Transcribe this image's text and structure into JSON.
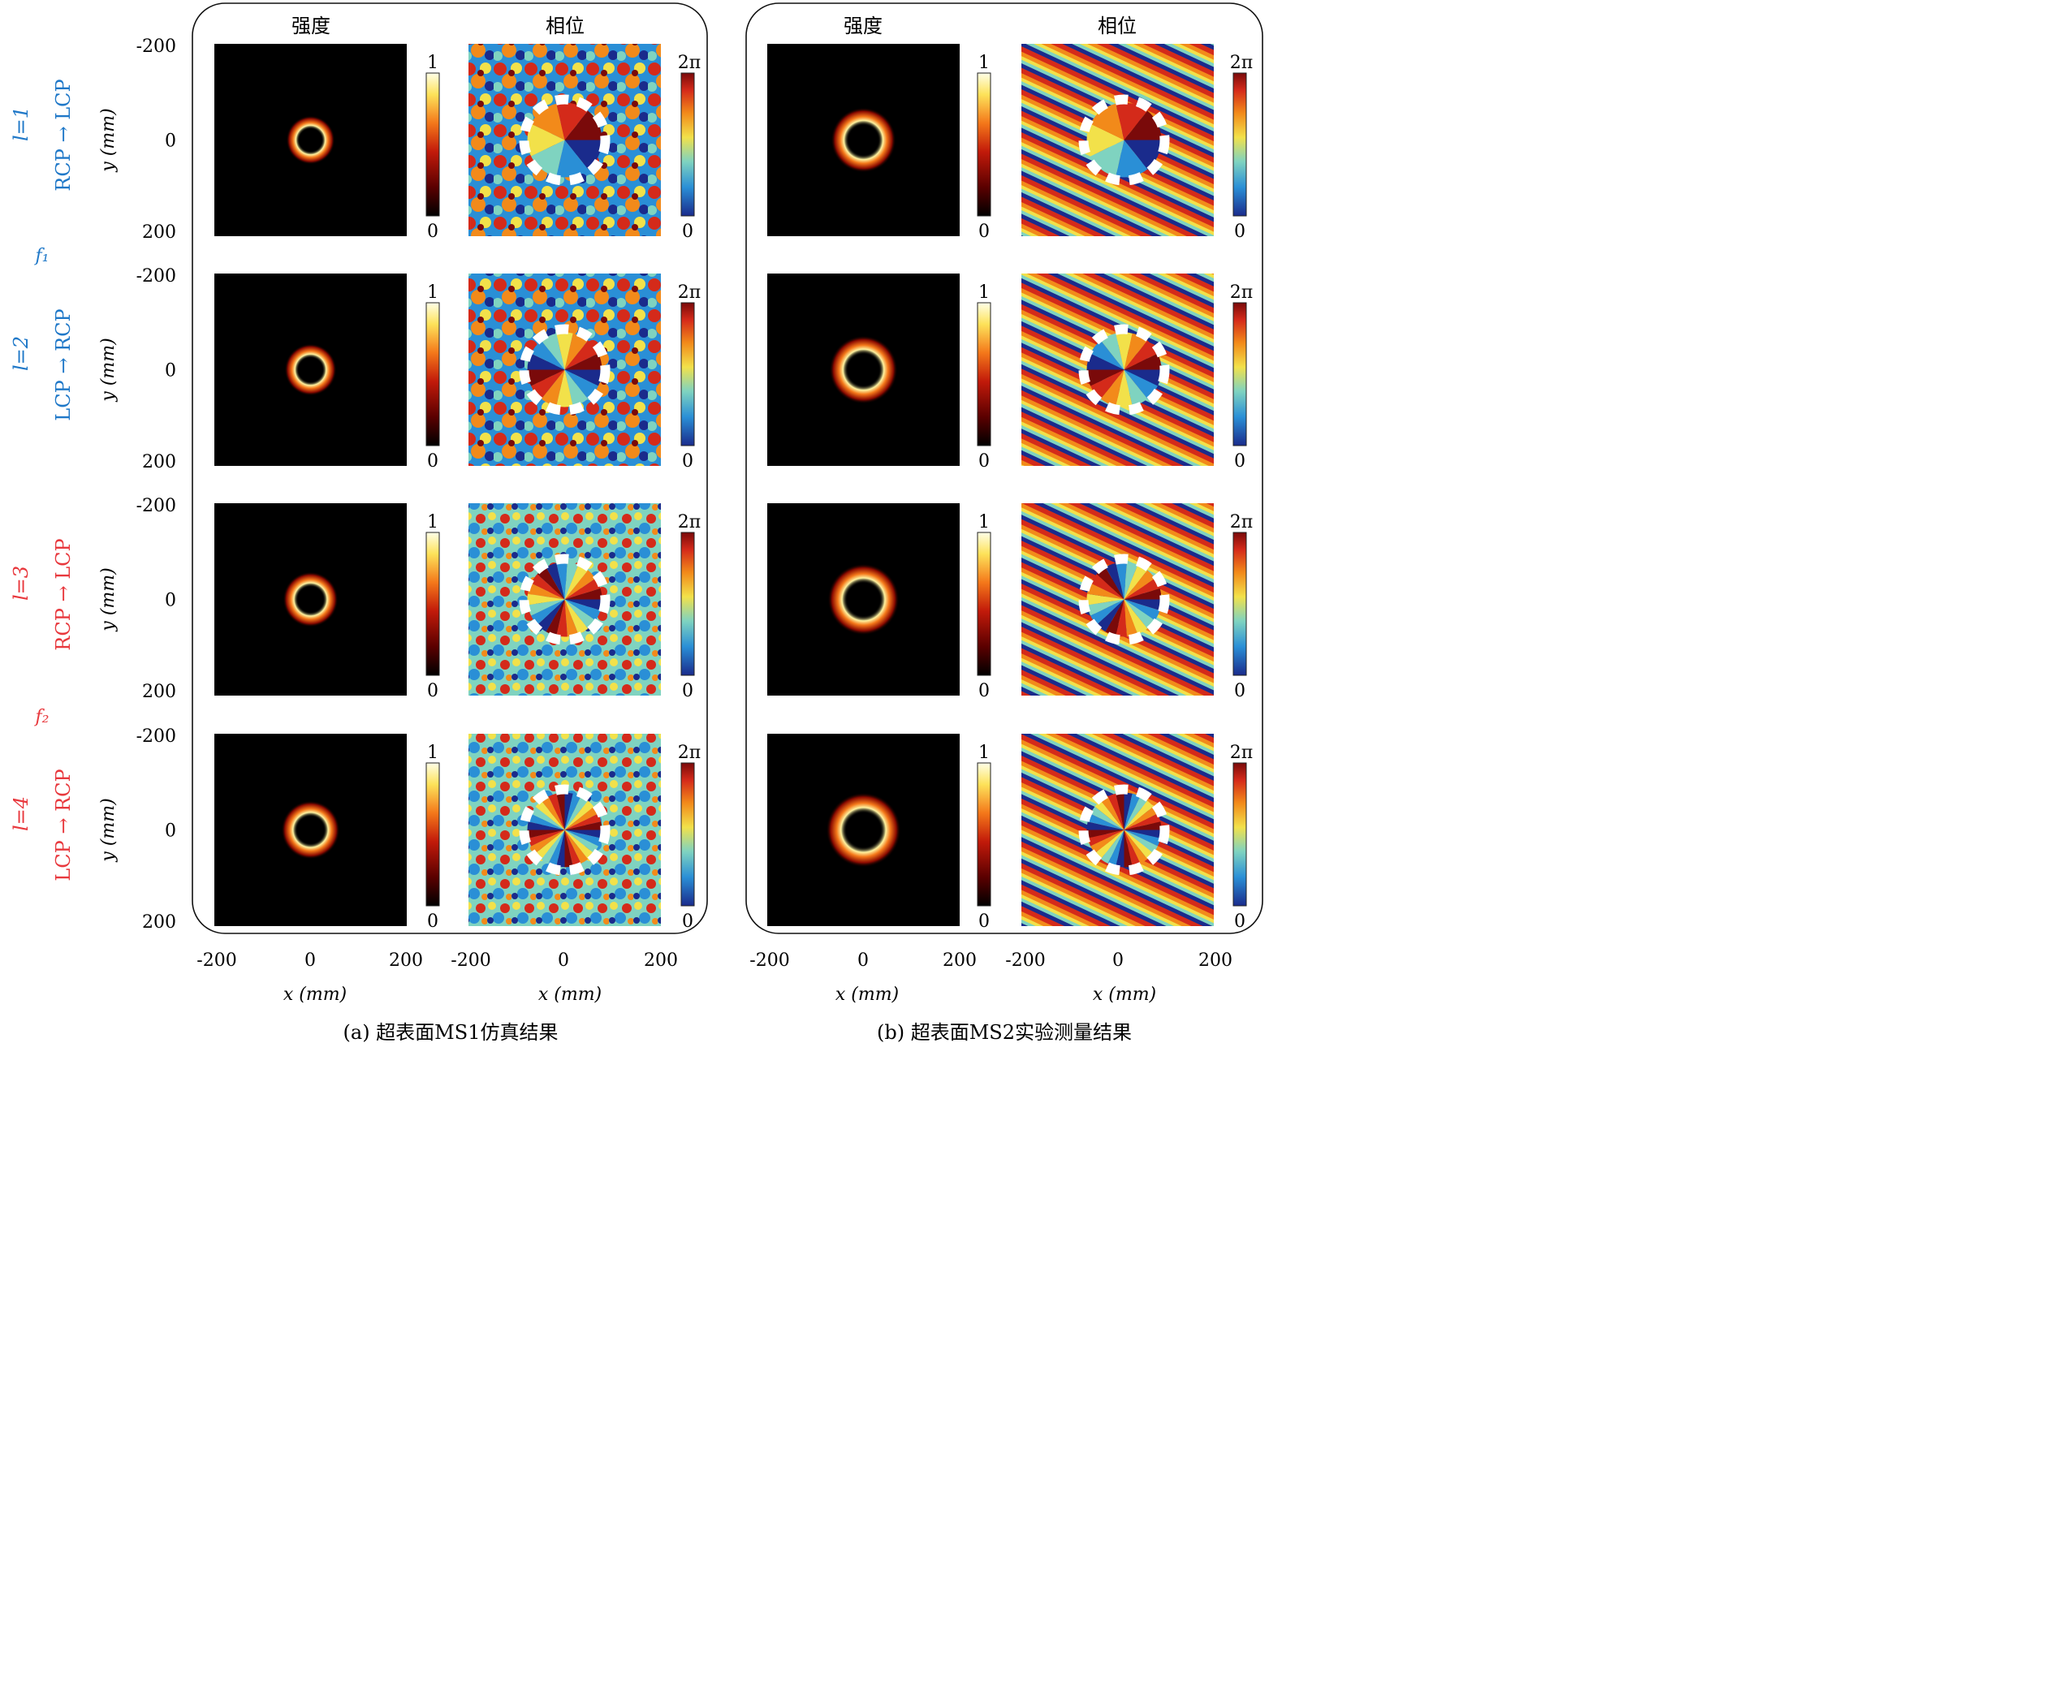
{
  "panels": [
    {
      "id": "a",
      "caption": "(a) 超表面MS1仿真结果",
      "col_titles": [
        "强度",
        "相位"
      ],
      "x_ticks": [
        "-200",
        "0",
        "200"
      ],
      "x_label": "x (mm)",
      "intensity_colorbar": {
        "max": "1",
        "min": "0"
      },
      "phase_colorbar": {
        "max": "2π",
        "min": "0"
      }
    },
    {
      "id": "b",
      "caption": "(b) 超表面MS2实验测量结果",
      "col_titles": [
        "强度",
        "相位"
      ],
      "x_ticks": [
        "-200",
        "0",
        "200"
      ],
      "x_label": "x (mm)",
      "intensity_colorbar": {
        "max": "1",
        "min": "0"
      },
      "phase_colorbar": {
        "max": "2π",
        "min": "0"
      }
    }
  ],
  "rows": [
    {
      "l_label": "l=1",
      "conversion": "RCP → LCP",
      "color": "#1f78c8",
      "topological_charge": 1
    },
    {
      "l_label": "l=2",
      "conversion": "LCP → RCP",
      "color": "#1f78c8",
      "topological_charge": 2
    },
    {
      "l_label": "l=3",
      "conversion": "RCP → LCP",
      "color": "#e8383d",
      "topological_charge": 3
    },
    {
      "l_label": "l=4",
      "conversion": "LCP → RCP",
      "color": "#e8383d",
      "topological_charge": 4
    }
  ],
  "frequency_labels": [
    {
      "text": "f₁",
      "color": "#1f78c8"
    },
    {
      "text": "f₂",
      "color": "#e8383d"
    }
  ],
  "y_axis": {
    "label": "y (mm)",
    "ticks": [
      "-200",
      "0",
      "200"
    ]
  },
  "colors": {
    "background_plot": "#000000",
    "intensity_map": [
      "#000000",
      "#5a0000",
      "#c21a0a",
      "#f4781a",
      "#fde25a",
      "#ffffe8"
    ],
    "phase_map": [
      "#1a2b8c",
      "#2a8fd6",
      "#7fd3c0",
      "#f2e14a",
      "#f28a1a",
      "#d42a1a",
      "#7a0a0a"
    ]
  }
}
